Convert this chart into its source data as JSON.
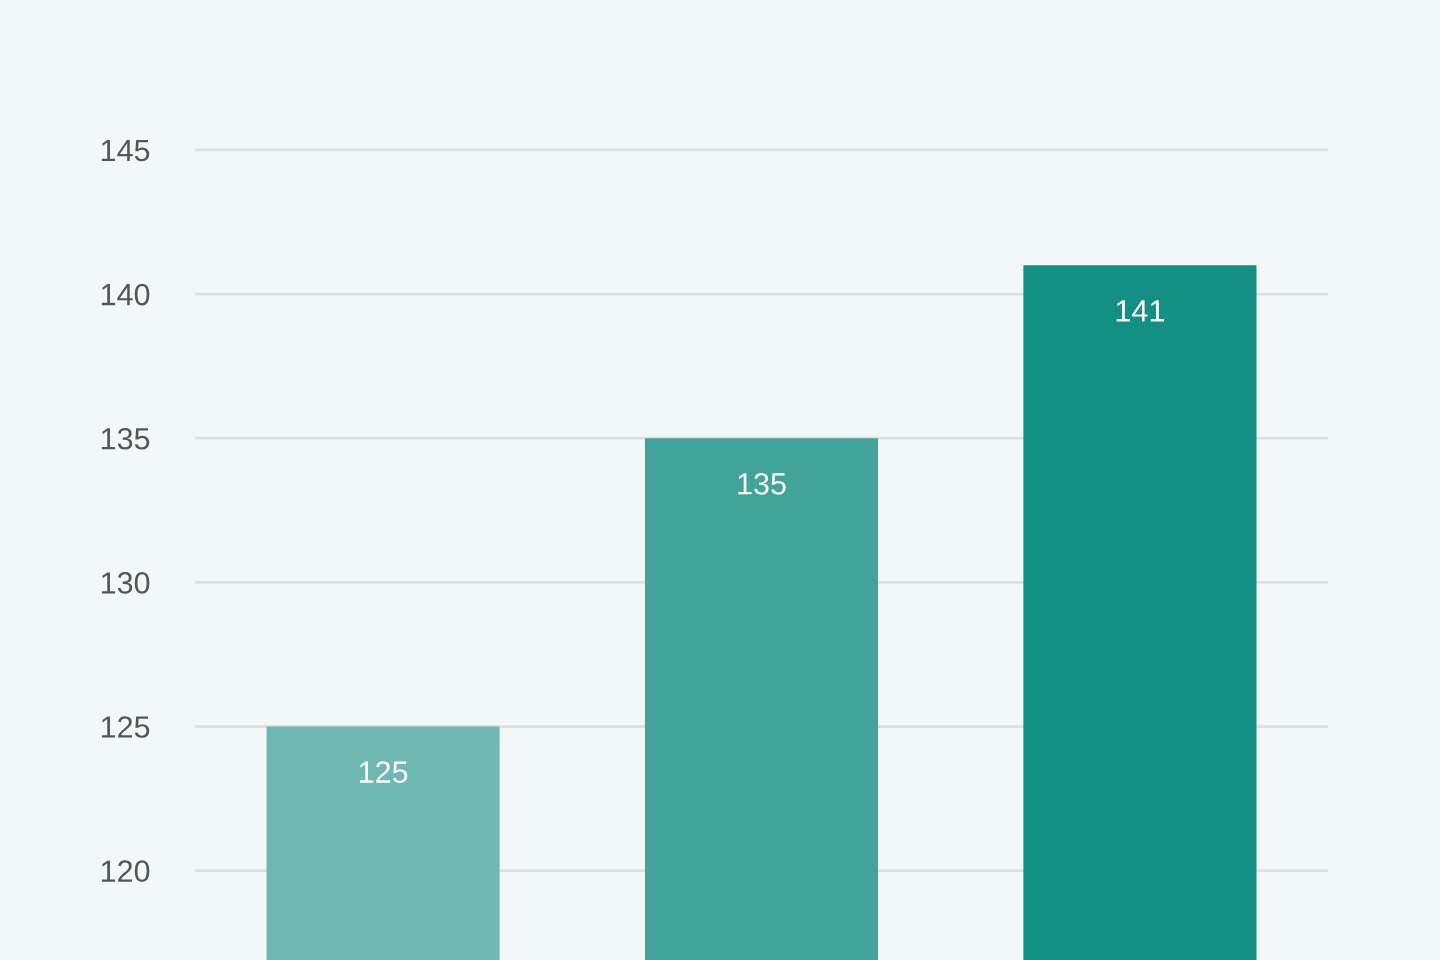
{
  "chart_data": {
    "type": "bar",
    "categories": [
      null,
      null,
      null
    ],
    "values": [
      125,
      135,
      141
    ],
    "colors": [
      "#6fb8b1",
      "#42a39a",
      "#148f83"
    ],
    "ylim": [
      116.9,
      150.2
    ],
    "yticks": [
      120,
      125,
      130,
      135,
      140,
      145
    ],
    "grid": "y",
    "data_labels": true
  }
}
